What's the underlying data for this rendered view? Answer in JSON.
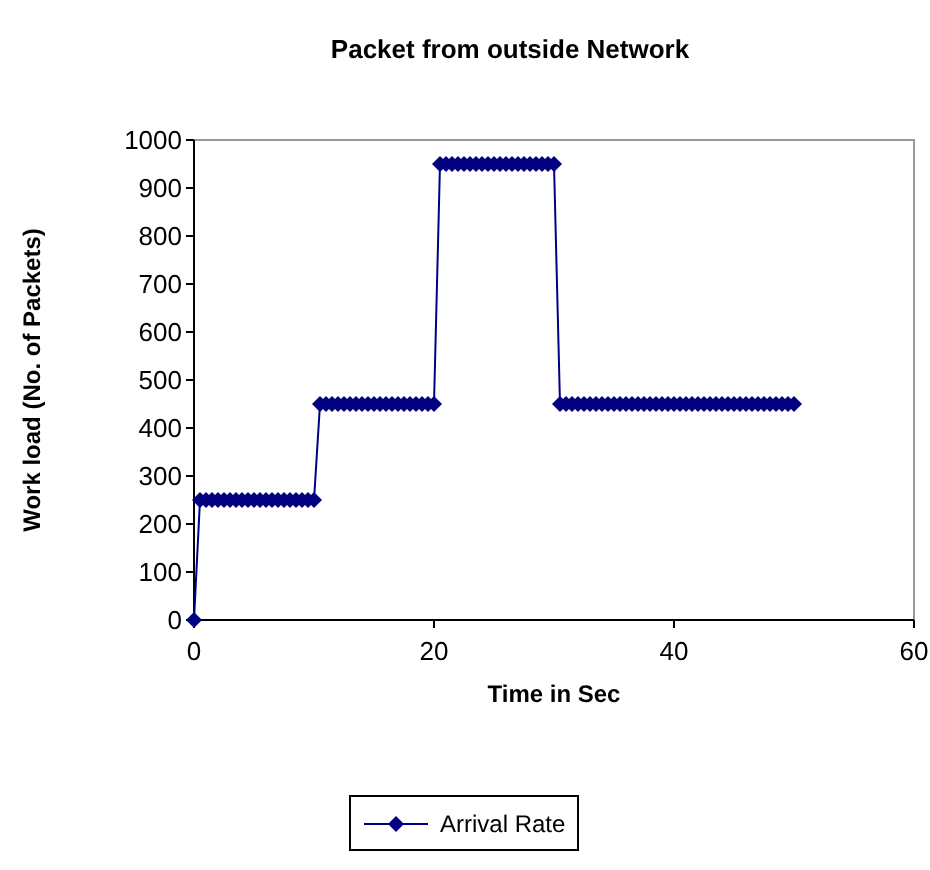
{
  "chart_data": {
    "type": "line",
    "title": "Packet from outside Network",
    "xlabel": "Time in Sec",
    "ylabel": "Work load (No. of Packets)",
    "x": [
      0,
      0.5,
      1,
      1.5,
      2,
      2.5,
      3,
      3.5,
      4,
      4.5,
      5,
      5.5,
      6,
      6.5,
      7,
      7.5,
      8,
      8.5,
      9,
      9.5,
      10,
      10.5,
      11,
      11.5,
      12,
      12.5,
      13,
      13.5,
      14,
      14.5,
      15,
      15.5,
      16,
      16.5,
      17,
      17.5,
      18,
      18.5,
      19,
      19.5,
      20,
      20.5,
      21,
      21.5,
      22,
      22.5,
      23,
      23.5,
      24,
      24.5,
      25,
      25.5,
      26,
      26.5,
      27,
      27.5,
      28,
      28.5,
      29,
      29.5,
      30,
      30.5,
      31,
      31.5,
      32,
      32.5,
      33,
      33.5,
      34,
      34.5,
      35,
      35.5,
      36,
      36.5,
      37,
      37.5,
      38,
      38.5,
      39,
      39.5,
      40,
      40.5,
      41,
      41.5,
      42,
      42.5,
      43,
      43.5,
      44,
      44.5,
      45,
      45.5,
      46,
      46.5,
      47,
      47.5,
      48,
      48.5,
      49,
      49.5,
      50
    ],
    "series": [
      {
        "name": "Arrival Rate",
        "color": "#000080",
        "values": [
          0,
          250,
          250,
          250,
          250,
          250,
          250,
          250,
          250,
          250,
          250,
          250,
          250,
          250,
          250,
          250,
          250,
          250,
          250,
          250,
          250,
          450,
          450,
          450,
          450,
          450,
          450,
          450,
          450,
          450,
          450,
          450,
          450,
          450,
          450,
          450,
          450,
          450,
          450,
          450,
          450,
          950,
          950,
          950,
          950,
          950,
          950,
          950,
          950,
          950,
          950,
          950,
          950,
          950,
          950,
          950,
          950,
          950,
          950,
          950,
          950,
          450,
          450,
          450,
          450,
          450,
          450,
          450,
          450,
          450,
          450,
          450,
          450,
          450,
          450,
          450,
          450,
          450,
          450,
          450,
          450,
          450,
          450,
          450,
          450,
          450,
          450,
          450,
          450,
          450,
          450,
          450,
          450,
          450,
          450,
          450,
          450,
          450,
          450,
          450,
          450
        ]
      }
    ],
    "xlim": [
      0,
      60
    ],
    "xticks": [
      0,
      20,
      40,
      60
    ],
    "ylim": [
      0,
      1000
    ],
    "yticks": [
      0,
      100,
      200,
      300,
      400,
      500,
      600,
      700,
      800,
      900,
      1000
    ],
    "grid": false,
    "legend": "bottom",
    "marker": "diamond",
    "line_style": "solid"
  }
}
